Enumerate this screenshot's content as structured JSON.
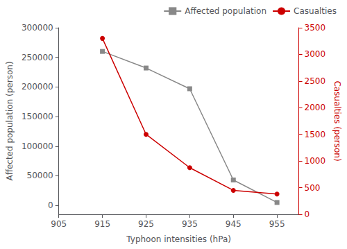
{
  "chart_data": {
    "type": "line",
    "xlabel": "Typhoon intensities (hPa)",
    "ylabel": "Affected population (person)",
    "y2label": "Casualties (person)",
    "x": [
      915,
      925,
      935,
      945,
      955
    ],
    "series": [
      {
        "name": "Affected population",
        "color": "#888888",
        "marker": "square",
        "values": [
          260000,
          232000,
          197000,
          43000,
          5000
        ]
      },
      {
        "name": "Casualties",
        "color": "#cc0000",
        "marker": "circle",
        "axis": "y2",
        "values": [
          3300,
          1500,
          875,
          450,
          380
        ]
      }
    ],
    "xlim": [
      905,
      960
    ],
    "xticks": [
      905,
      915,
      925,
      935,
      945,
      955
    ],
    "ylim": [
      -15000,
      300000
    ],
    "yticks": [
      0,
      50000,
      100000,
      150000,
      200000,
      250000,
      300000
    ],
    "y2lim": [
      0,
      3500
    ],
    "y2ticks": [
      0,
      500,
      1000,
      1500,
      2000,
      2500,
      3000,
      3500
    ],
    "legend": "upper right",
    "grid": false
  }
}
